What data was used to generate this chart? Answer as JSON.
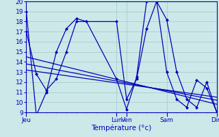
{
  "xlabel": "Température (°c)",
  "background_color": "#cce8e8",
  "grid_color": "#aacccc",
  "line_color": "#0000bb",
  "ylim": [
    9,
    20
  ],
  "yticks": [
    9,
    10,
    11,
    12,
    13,
    14,
    15,
    16,
    17,
    18,
    19,
    20
  ],
  "day_labels": [
    "Jeu",
    "Lun",
    "Ven",
    "Sam",
    "Dim"
  ],
  "day_positions": [
    0,
    9,
    10,
    14,
    19
  ],
  "xmin": 0,
  "xmax": 19,
  "series": {
    "line1": {
      "x": [
        0,
        1,
        2,
        3,
        4,
        5,
        6,
        9,
        10,
        11,
        12,
        13,
        14,
        15,
        16,
        17,
        18,
        19
      ],
      "y": [
        19,
        8.7,
        11.0,
        15.0,
        17.3,
        18.3,
        18.0,
        12.3,
        9.3,
        12.5,
        20.0,
        20.0,
        18.2,
        13.0,
        10.3,
        9.5,
        12.0,
        9.0
      ]
    },
    "line2": {
      "x": [
        0,
        1,
        2,
        3,
        4,
        5,
        9,
        10,
        11,
        12,
        13,
        14,
        15,
        16,
        17,
        18,
        19
      ],
      "y": [
        17.0,
        12.8,
        11.2,
        12.3,
        15.0,
        18.0,
        18.0,
        10.3,
        12.3,
        17.3,
        20.0,
        13.0,
        10.3,
        9.5,
        12.2,
        11.4,
        9.0
      ]
    },
    "trend1": {
      "x": [
        0,
        19
      ],
      "y": [
        14.5,
        9.8
      ]
    },
    "trend2": {
      "x": [
        0,
        19
      ],
      "y": [
        13.8,
        10.2
      ]
    },
    "trend3": {
      "x": [
        0,
        19
      ],
      "y": [
        13.2,
        10.5
      ]
    }
  }
}
